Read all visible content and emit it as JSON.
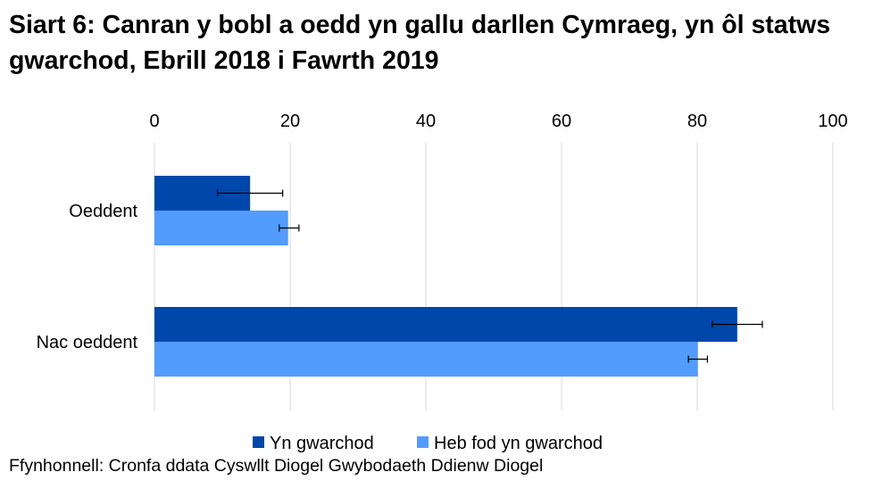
{
  "chart_data": {
    "type": "bar",
    "orientation": "horizontal",
    "title": "Siart 6: Canran y bobl a oedd yn gallu darllen Cymraeg, yn ôl statws gwarchod, Ebrill 2018 i Fawrth 2019",
    "categories": [
      "Oeddent",
      "Nac oeddent"
    ],
    "series": [
      {
        "name": "Yn gwarchod",
        "color": "#0047AB",
        "values": [
          14.1,
          85.9
        ],
        "error_low": [
          9.3,
          82.2
        ],
        "error_high": [
          18.9,
          89.6
        ]
      },
      {
        "name": "Heb fod yn gwarchod",
        "color": "#529BFF",
        "values": [
          19.7,
          80.1
        ],
        "error_low": [
          18.4,
          78.7
        ],
        "error_high": [
          21.3,
          81.5
        ]
      }
    ],
    "xlim": [
      0,
      100
    ],
    "xticks": [
      "0",
      "20",
      "40",
      "60",
      "80",
      "100"
    ],
    "xaxis_position": "top",
    "grid": true,
    "legend": "bottom",
    "source": "Ffynhonnell: Cronfa ddata Cyswllt Diogel Gwybodaeth Ddienw Diogel"
  }
}
